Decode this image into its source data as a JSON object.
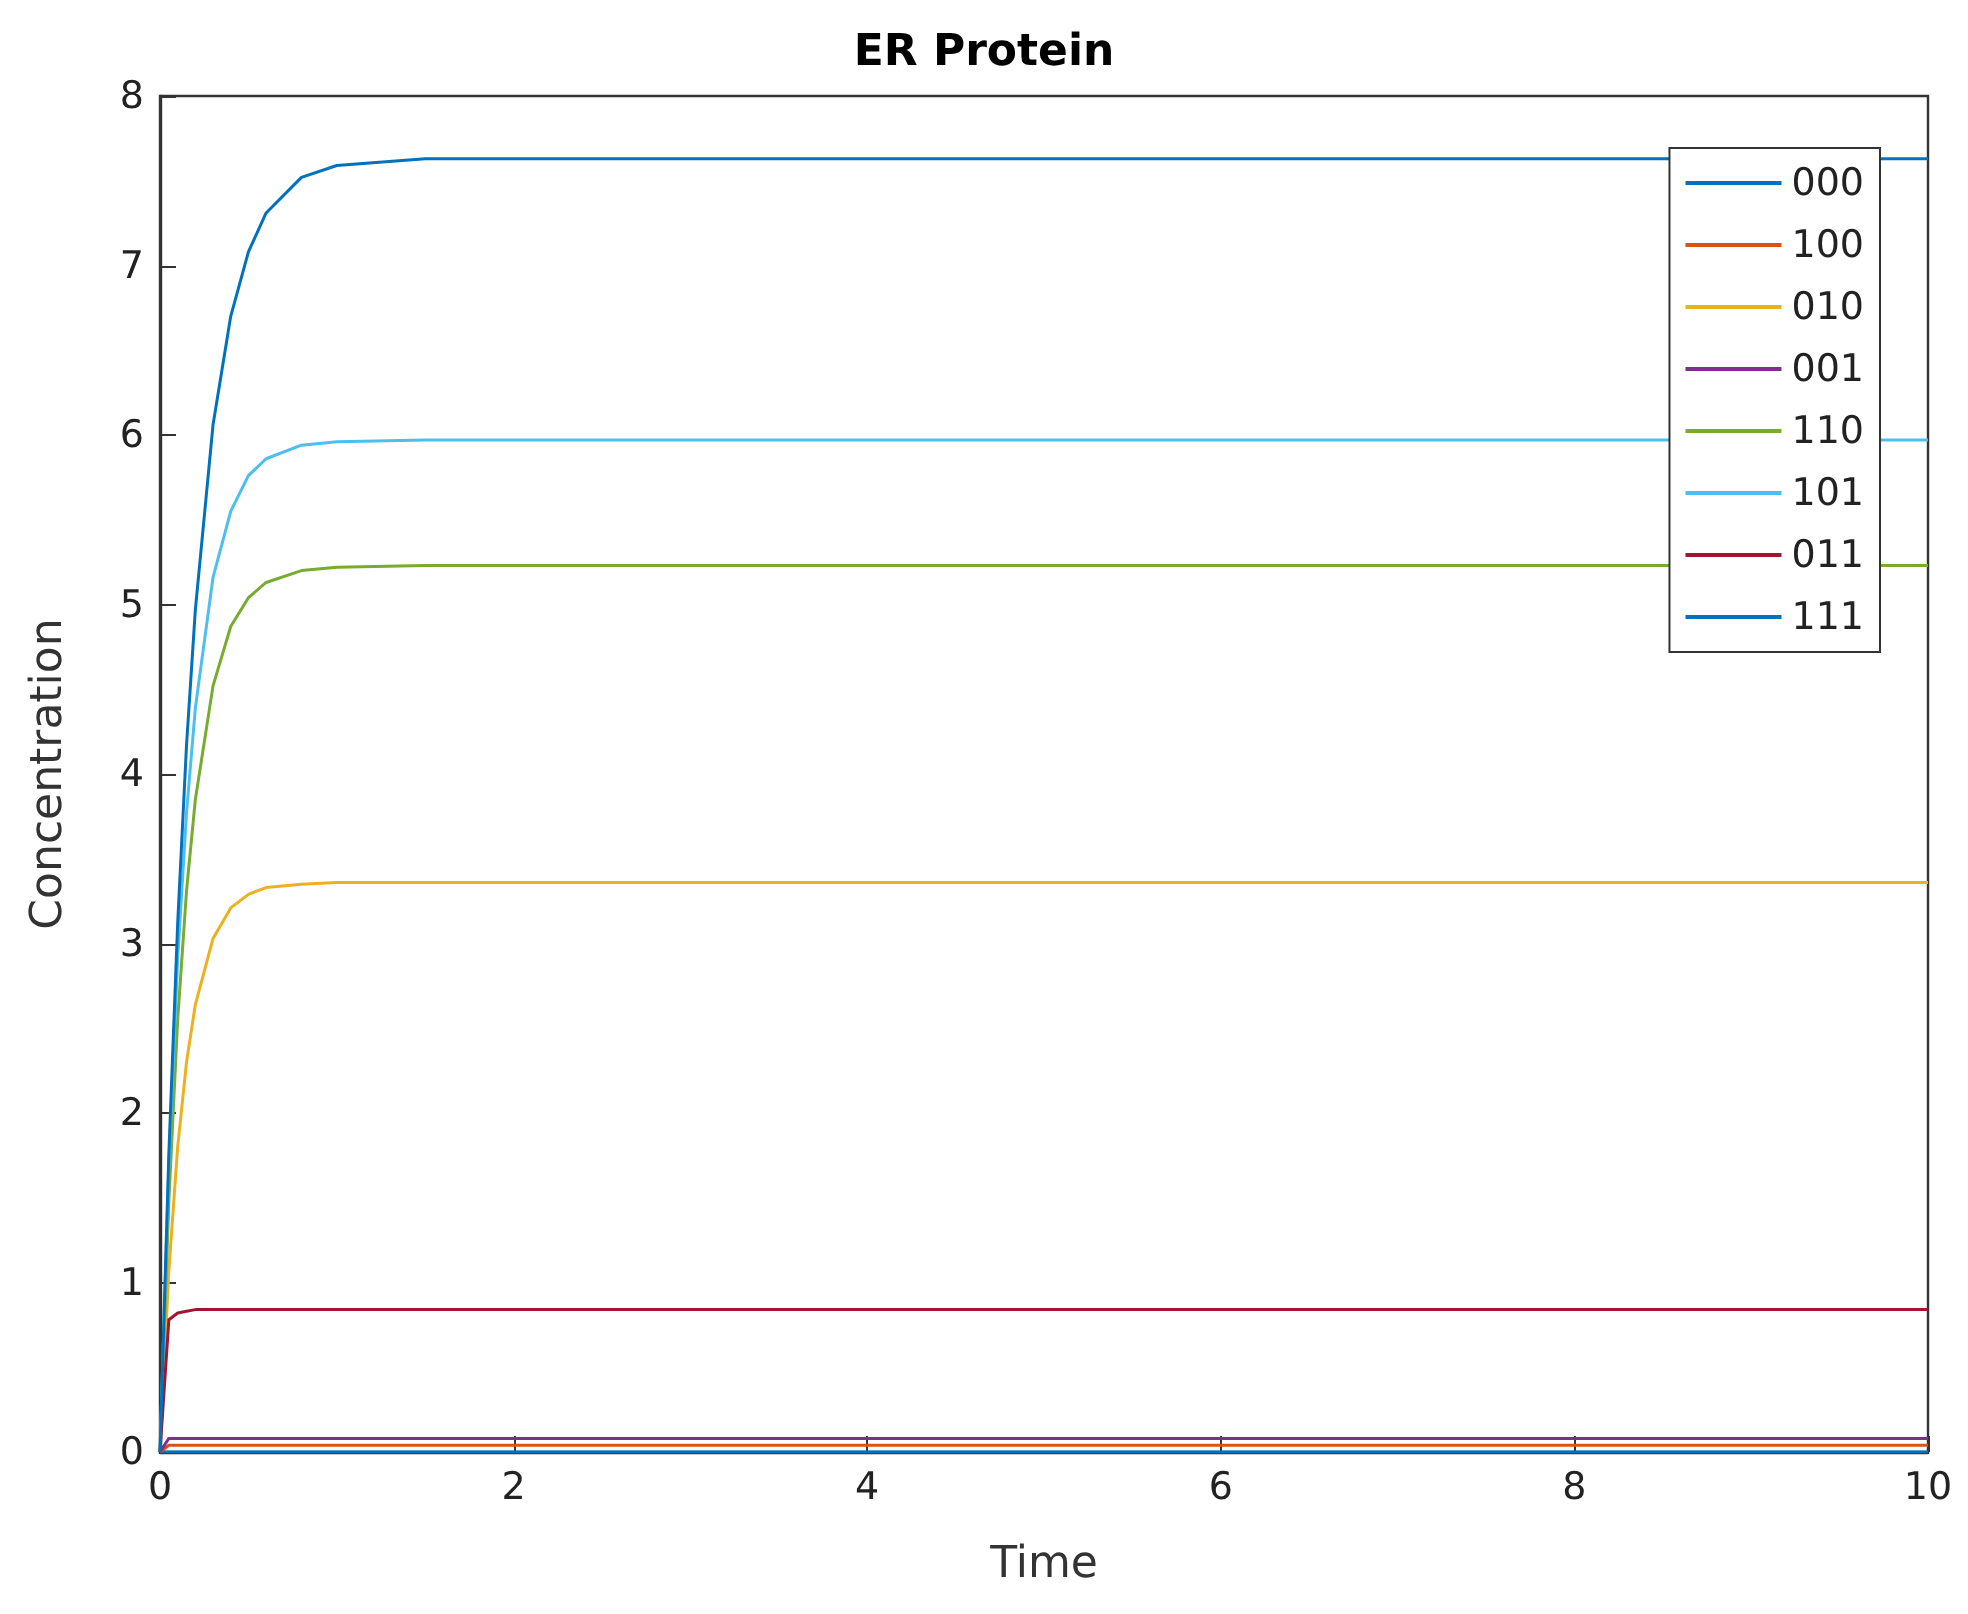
{
  "chart_data": {
    "type": "line",
    "title": "ER Protein",
    "xlabel": "Time",
    "ylabel": "Concentration",
    "x": [
      0,
      0.05,
      0.1,
      0.15,
      0.2,
      0.3,
      0.4,
      0.5,
      0.6,
      0.8,
      1,
      1.5,
      10
    ],
    "series": [
      {
        "name": "000",
        "color": "#0072bd",
        "values": [
          0,
          0,
          0,
          0,
          0,
          0,
          0,
          0,
          0,
          0,
          0,
          0,
          0
        ]
      },
      {
        "name": "100",
        "color": "#d95319",
        "values": [
          0,
          0.04,
          0.04,
          0.04,
          0.04,
          0.04,
          0.04,
          0.04,
          0.04,
          0.04,
          0.04,
          0.04,
          0.04
        ]
      },
      {
        "name": "010",
        "color": "#edb120",
        "values": [
          0,
          1.07,
          1.8,
          2.3,
          2.64,
          3.03,
          3.21,
          3.29,
          3.33,
          3.35,
          3.36,
          3.36,
          3.36
        ]
      },
      {
        "name": "001",
        "color": "#7e2f8e",
        "values": [
          0,
          0.08,
          0.08,
          0.08,
          0.08,
          0.08,
          0.08,
          0.08,
          0.08,
          0.08,
          0.08,
          0.08,
          0.08
        ]
      },
      {
        "name": "110",
        "color": "#77ac30",
        "values": [
          0,
          1.48,
          2.55,
          3.31,
          3.85,
          4.52,
          4.87,
          5.04,
          5.13,
          5.2,
          5.22,
          5.23,
          5.23
        ]
      },
      {
        "name": "101",
        "color": "#4dbeee",
        "values": [
          0,
          1.69,
          2.91,
          3.77,
          4.39,
          5.16,
          5.55,
          5.76,
          5.86,
          5.94,
          5.96,
          5.97,
          5.97
        ]
      },
      {
        "name": "011",
        "color": "#a2142f",
        "values": [
          0,
          0.78,
          0.82,
          0.83,
          0.84,
          0.84,
          0.84,
          0.84,
          0.84,
          0.84,
          0.84,
          0.84,
          0.84
        ]
      },
      {
        "name": "111",
        "color": "#0072bd",
        "values": [
          0,
          1.76,
          3.12,
          4.17,
          4.97,
          6.06,
          6.7,
          7.08,
          7.31,
          7.52,
          7.59,
          7.63,
          7.63
        ]
      }
    ],
    "xlim": [
      0,
      10
    ],
    "xticks": [
      0,
      2,
      4,
      6,
      8,
      10
    ],
    "ylim": [
      0,
      8
    ],
    "yticks": [
      0,
      1,
      2,
      3,
      4,
      5,
      6,
      7,
      8
    ],
    "grid": false,
    "legend": "top right",
    "marker": "none",
    "line_style": "solid"
  }
}
